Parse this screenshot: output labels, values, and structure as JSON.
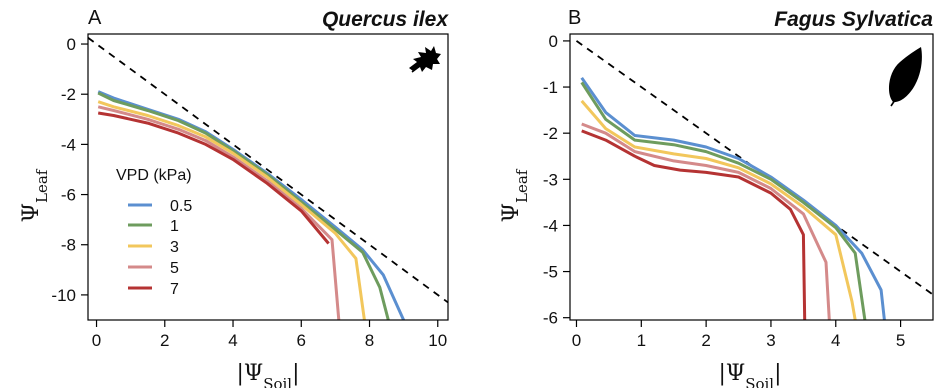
{
  "chart_data": [
    {
      "type": "line",
      "panel_letter": "A",
      "title": "Quercus ilex",
      "xlabel_prefix": "|Ψ",
      "xlabel_sub": "Soil",
      "xlabel_suffix": "|",
      "ylabel_prefix": "Ψ",
      "ylabel_sub": "Leaf",
      "xlim": [
        -0.25,
        10.3
      ],
      "ylim": [
        -11,
        0.4
      ],
      "xticks": [
        0,
        2,
        4,
        6,
        8,
        10
      ],
      "yticks": [
        0,
        -2,
        -4,
        -6,
        -8,
        -10
      ],
      "xtick_labels": [
        "0",
        "2",
        "4",
        "6",
        "8",
        "10"
      ],
      "ytick_labels": [
        "0",
        "-2",
        "-4",
        "-6",
        "-8",
        "-10"
      ],
      "reference_line": {
        "style": "dashed",
        "color": "#000000",
        "points": [
          [
            -0.25,
            0.25
          ],
          [
            10.3,
            -10.3
          ]
        ]
      },
      "icon": "oak-leaf-icon",
      "legend": {
        "title": "VPD (kPa)",
        "placement": "left-center",
        "entries": [
          "0.5",
          "1",
          "3",
          "5",
          "7"
        ]
      },
      "series": [
        {
          "name": "0.5",
          "color": "#5b8fd0",
          "points": [
            [
              0.05,
              -1.9
            ],
            [
              0.5,
              -2.15
            ],
            [
              1.5,
              -2.6
            ],
            [
              2.4,
              -3.0
            ],
            [
              3.2,
              -3.5
            ],
            [
              4.0,
              -4.2
            ],
            [
              5.0,
              -5.15
            ],
            [
              6.0,
              -6.2
            ],
            [
              7.0,
              -7.3
            ],
            [
              7.8,
              -8.2
            ],
            [
              8.4,
              -9.2
            ],
            [
              9.0,
              -11.0
            ]
          ]
        },
        {
          "name": "1",
          "color": "#6e9c5e",
          "points": [
            [
              0.05,
              -1.95
            ],
            [
              0.5,
              -2.25
            ],
            [
              1.5,
              -2.65
            ],
            [
              2.4,
              -3.05
            ],
            [
              3.2,
              -3.55
            ],
            [
              4.0,
              -4.25
            ],
            [
              5.0,
              -5.2
            ],
            [
              6.0,
              -6.3
            ],
            [
              7.0,
              -7.4
            ],
            [
              7.8,
              -8.3
            ],
            [
              8.3,
              -9.7
            ],
            [
              8.55,
              -11.0
            ]
          ]
        },
        {
          "name": "3",
          "color": "#f2c75c",
          "points": [
            [
              0.05,
              -2.3
            ],
            [
              0.5,
              -2.5
            ],
            [
              1.5,
              -2.85
            ],
            [
              2.4,
              -3.25
            ],
            [
              3.2,
              -3.7
            ],
            [
              4.0,
              -4.35
            ],
            [
              5.0,
              -5.3
            ],
            [
              6.0,
              -6.4
            ],
            [
              7.0,
              -7.55
            ],
            [
              7.6,
              -8.55
            ],
            [
              7.85,
              -11.0
            ]
          ]
        },
        {
          "name": "5",
          "color": "#d48a8a",
          "points": [
            [
              0.05,
              -2.5
            ],
            [
              0.5,
              -2.65
            ],
            [
              1.5,
              -3.0
            ],
            [
              2.4,
              -3.4
            ],
            [
              3.2,
              -3.85
            ],
            [
              4.0,
              -4.5
            ],
            [
              5.0,
              -5.45
            ],
            [
              6.0,
              -6.55
            ],
            [
              6.9,
              -7.8
            ],
            [
              7.1,
              -11.0
            ]
          ]
        },
        {
          "name": "7",
          "color": "#b53333",
          "points": [
            [
              0.05,
              -2.75
            ],
            [
              0.5,
              -2.85
            ],
            [
              1.5,
              -3.15
            ],
            [
              2.4,
              -3.55
            ],
            [
              3.2,
              -4.0
            ],
            [
              4.0,
              -4.6
            ],
            [
              5.0,
              -5.55
            ],
            [
              6.0,
              -6.65
            ],
            [
              6.8,
              -7.95
            ]
          ]
        }
      ]
    },
    {
      "type": "line",
      "panel_letter": "B",
      "title": "Fagus Sylvatica",
      "xlabel_prefix": "|Ψ",
      "xlabel_sub": "Soil",
      "xlabel_suffix": "|",
      "ylabel_prefix": "Ψ",
      "ylabel_sub": "Leaf",
      "xlim": [
        -0.1,
        5.5
      ],
      "ylim": [
        -6.05,
        0.15
      ],
      "xticks": [
        0,
        1,
        2,
        3,
        4,
        5
      ],
      "yticks": [
        0,
        -1,
        -2,
        -3,
        -4,
        -5,
        -6
      ],
      "xtick_labels": [
        "0",
        "1",
        "2",
        "3",
        "4",
        "5"
      ],
      "ytick_labels": [
        "0",
        "-1",
        "-2",
        "-3",
        "-4",
        "-5",
        "-6"
      ],
      "reference_line": {
        "style": "dashed",
        "color": "#000000",
        "points": [
          [
            0.0,
            0.0
          ],
          [
            5.5,
            -5.5
          ]
        ]
      },
      "icon": "beech-leaf-icon",
      "series": [
        {
          "name": "0.5",
          "color": "#5b8fd0",
          "points": [
            [
              0.08,
              -0.8
            ],
            [
              0.45,
              -1.55
            ],
            [
              0.9,
              -2.05
            ],
            [
              1.5,
              -2.15
            ],
            [
              2.0,
              -2.3
            ],
            [
              2.5,
              -2.55
            ],
            [
              3.0,
              -2.95
            ],
            [
              3.5,
              -3.45
            ],
            [
              4.0,
              -4.0
            ],
            [
              4.4,
              -4.6
            ],
            [
              4.7,
              -5.4
            ],
            [
              4.75,
              -6.05
            ]
          ]
        },
        {
          "name": "1",
          "color": "#6e9c5e",
          "points": [
            [
              0.08,
              -0.9
            ],
            [
              0.45,
              -1.7
            ],
            [
              0.9,
              -2.15
            ],
            [
              1.5,
              -2.25
            ],
            [
              2.0,
              -2.4
            ],
            [
              2.5,
              -2.65
            ],
            [
              3.0,
              -3.0
            ],
            [
              3.5,
              -3.5
            ],
            [
              4.0,
              -4.05
            ],
            [
              4.3,
              -4.6
            ],
            [
              4.45,
              -6.05
            ]
          ]
        },
        {
          "name": "3",
          "color": "#f2c75c",
          "points": [
            [
              0.08,
              -1.3
            ],
            [
              0.45,
              -1.9
            ],
            [
              0.9,
              -2.3
            ],
            [
              1.5,
              -2.45
            ],
            [
              2.0,
              -2.55
            ],
            [
              2.5,
              -2.75
            ],
            [
              3.0,
              -3.1
            ],
            [
              3.5,
              -3.6
            ],
            [
              4.0,
              -4.2
            ],
            [
              4.25,
              -5.65
            ],
            [
              4.3,
              -6.05
            ]
          ]
        },
        {
          "name": "5",
          "color": "#d48a8a",
          "points": [
            [
              0.08,
              -1.8
            ],
            [
              0.45,
              -2.0
            ],
            [
              0.9,
              -2.4
            ],
            [
              1.5,
              -2.6
            ],
            [
              2.0,
              -2.7
            ],
            [
              2.5,
              -2.85
            ],
            [
              3.0,
              -3.2
            ],
            [
              3.5,
              -3.75
            ],
            [
              3.85,
              -4.8
            ],
            [
              3.9,
              -6.05
            ]
          ]
        },
        {
          "name": "7",
          "color": "#b53333",
          "points": [
            [
              0.08,
              -1.95
            ],
            [
              0.45,
              -2.15
            ],
            [
              0.9,
              -2.5
            ],
            [
              1.2,
              -2.7
            ],
            [
              1.6,
              -2.8
            ],
            [
              2.0,
              -2.85
            ],
            [
              2.5,
              -2.95
            ],
            [
              3.0,
              -3.3
            ],
            [
              3.3,
              -3.65
            ],
            [
              3.5,
              -4.2
            ],
            [
              3.52,
              -6.05
            ]
          ]
        }
      ]
    }
  ]
}
